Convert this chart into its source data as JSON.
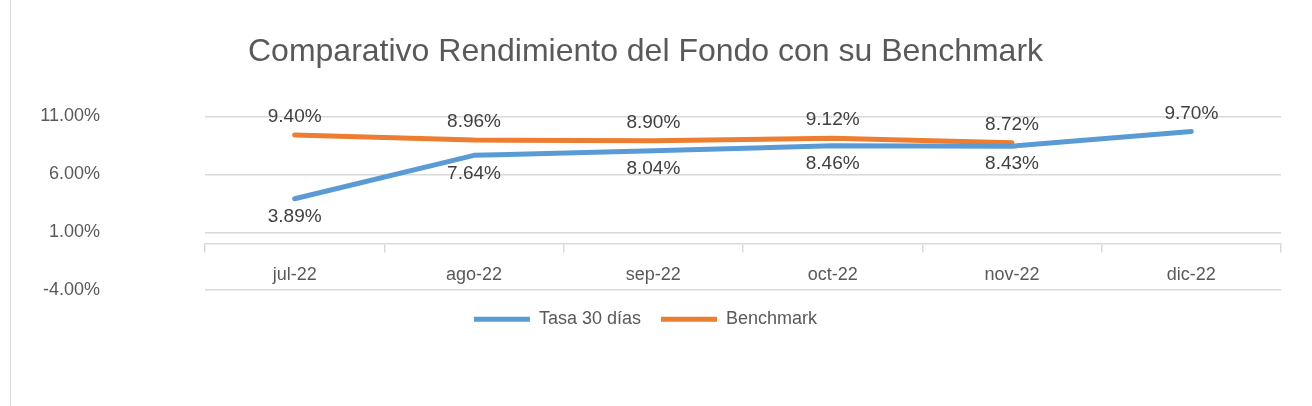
{
  "chart_data": {
    "type": "line",
    "title": "Comparativo Rendimiento del Fondo con su Benchmark",
    "categories": [
      "jul-22",
      "ago-22",
      "sep-22",
      "oct-22",
      "nov-22",
      "dic-22"
    ],
    "series": [
      {
        "name": "Tasa 30 días",
        "color": "#5b9bd5",
        "values": [
          3.89,
          7.64,
          8.04,
          8.46,
          8.43,
          9.7
        ],
        "value_labels": [
          "3.89%",
          "7.64%",
          "8.04%",
          "8.46%",
          "8.43%",
          "9.70%"
        ]
      },
      {
        "name": "Benchmark",
        "color": "#ed7d31",
        "values": [
          9.4,
          8.96,
          8.9,
          9.12,
          8.72,
          null
        ],
        "value_labels": [
          "9.40%",
          "8.96%",
          "8.90%",
          "9.12%",
          "8.72%",
          null
        ]
      }
    ],
    "ylim": [
      -4,
      11
    ],
    "yticks": [
      {
        "value": -4,
        "label": "-4.00%"
      },
      {
        "value": 1,
        "label": "1.00%"
      },
      {
        "value": 6,
        "label": "6.00%"
      },
      {
        "value": 11,
        "label": "11.00%"
      }
    ],
    "grid": "y",
    "legend": "bottom",
    "marker": "none",
    "line_style": "solid"
  }
}
